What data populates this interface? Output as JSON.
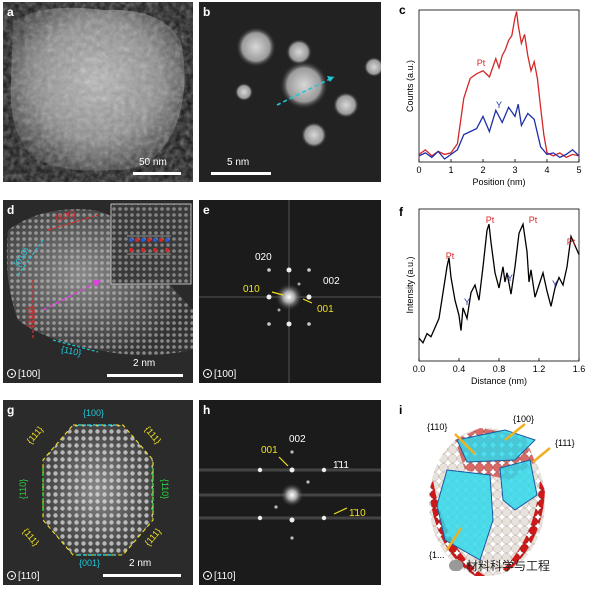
{
  "panels": {
    "a": {
      "label": "a",
      "scalebar": "50 nm"
    },
    "b": {
      "label": "b",
      "scalebar": "5 nm"
    },
    "c": {
      "label": "c"
    },
    "d": {
      "label": "d",
      "scalebar": "2 nm",
      "zone": "[100]",
      "facets": [
        "{100}",
        "{010}",
        "{001}",
        "{110}",
        "{110}"
      ]
    },
    "e": {
      "label": "e",
      "zone": "[100]",
      "spots": [
        "020",
        "010",
        "002",
        "001"
      ]
    },
    "f": {
      "label": "f"
    },
    "g": {
      "label": "g",
      "scalebar": "2 nm",
      "zone": "[110]",
      "facets": [
        "{100}",
        "{111}",
        "{111}",
        "{110}",
        "{110}",
        "{111}",
        "{111}",
        "{001}"
      ]
    },
    "h": {
      "label": "h",
      "zone": "[110]",
      "spots": [
        "002",
        "001",
        "1̄11",
        "1̄10"
      ]
    },
    "i": {
      "label": "i",
      "facets": [
        "{110}",
        "{100}",
        "{111}",
        "{1..."
      ]
    }
  },
  "watermark": "材料科学与工程",
  "chart_data": [
    {
      "type": "line",
      "panel": "c",
      "xlabel": "Position (nm)",
      "ylabel": "Counts (a.u.)",
      "xlim": [
        0,
        5
      ],
      "xticks": [
        "0",
        "1",
        "2",
        "3",
        "4",
        "5"
      ],
      "colors": {
        "Pt": "#d62728",
        "Y": "#1f2fa8"
      },
      "series": [
        {
          "name": "Pt",
          "x": [
            0,
            0.2,
            0.4,
            0.6,
            0.8,
            1.0,
            1.2,
            1.4,
            1.6,
            1.8,
            2.0,
            2.2,
            2.4,
            2.5,
            2.6,
            2.7,
            2.8,
            2.9,
            3.0,
            3.05,
            3.1,
            3.2,
            3.3,
            3.4,
            3.5,
            3.6,
            3.7,
            3.8,
            3.9,
            4.0,
            4.2,
            4.4,
            4.6,
            4.8,
            5.0
          ],
          "y": [
            0.05,
            0.08,
            0.04,
            0.07,
            0.05,
            0.06,
            0.12,
            0.42,
            0.55,
            0.58,
            0.6,
            0.56,
            0.68,
            0.62,
            0.7,
            0.74,
            0.8,
            0.83,
            0.95,
            0.99,
            0.9,
            0.78,
            0.84,
            0.7,
            0.6,
            0.66,
            0.55,
            0.36,
            0.18,
            0.06,
            0.04,
            0.06,
            0.03,
            0.05,
            0.04
          ]
        },
        {
          "name": "Y",
          "x": [
            0,
            0.2,
            0.4,
            0.6,
            0.8,
            1.0,
            1.2,
            1.4,
            1.6,
            1.8,
            2.0,
            2.2,
            2.4,
            2.6,
            2.8,
            3.0,
            3.1,
            3.2,
            3.4,
            3.6,
            3.8,
            4.0,
            4.2,
            4.4,
            4.6,
            4.8,
            5.0
          ],
          "y": [
            0.04,
            0.06,
            0.03,
            0.07,
            0.02,
            0.05,
            0.08,
            0.18,
            0.2,
            0.22,
            0.3,
            0.2,
            0.34,
            0.26,
            0.36,
            0.3,
            0.38,
            0.24,
            0.32,
            0.28,
            0.1,
            0.05,
            0.06,
            0.03,
            0.05,
            0.08,
            0.04
          ]
        }
      ],
      "annotations": [
        "Pt",
        "Y"
      ]
    },
    {
      "type": "line",
      "panel": "f",
      "xlabel": "Distance (nm)",
      "ylabel": "Intensity (a.u.)",
      "xlim": [
        0,
        1.6
      ],
      "xticks": [
        "0.0",
        "0.4",
        "0.8",
        "1.2",
        "1.6"
      ],
      "series": [
        {
          "name": "profile",
          "x": [
            0,
            0.04,
            0.08,
            0.12,
            0.16,
            0.2,
            0.24,
            0.28,
            0.3,
            0.32,
            0.36,
            0.4,
            0.42,
            0.44,
            0.48,
            0.52,
            0.56,
            0.6,
            0.64,
            0.68,
            0.7,
            0.72,
            0.76,
            0.8,
            0.84,
            0.86,
            0.88,
            0.92,
            0.96,
            1.0,
            1.04,
            1.08,
            1.1,
            1.12,
            1.16,
            1.2,
            1.24,
            1.28,
            1.32,
            1.36,
            1.4,
            1.44,
            1.48,
            1.52,
            1.56,
            1.6
          ],
          "y": [
            0.15,
            0.12,
            0.18,
            0.16,
            0.22,
            0.28,
            0.45,
            0.62,
            0.68,
            0.55,
            0.4,
            0.3,
            0.2,
            0.35,
            0.28,
            0.45,
            0.5,
            0.4,
            0.62,
            0.86,
            0.9,
            0.78,
            0.58,
            0.48,
            0.62,
            0.52,
            0.58,
            0.44,
            0.62,
            0.84,
            0.9,
            0.72,
            0.52,
            0.6,
            0.42,
            0.5,
            0.58,
            0.46,
            0.36,
            0.48,
            0.55,
            0.5,
            0.62,
            0.82,
            0.76,
            0.7
          ]
        }
      ],
      "annotations": [
        "Pt",
        "Pt",
        "Pt",
        "Pt",
        "Y",
        "Y",
        "Y"
      ]
    }
  ]
}
